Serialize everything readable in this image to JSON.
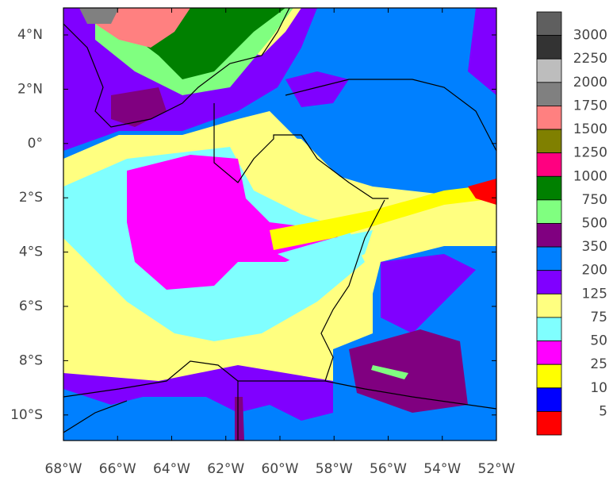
{
  "map": {
    "lon_ticks": [
      "68°W",
      "66°W",
      "64°W",
      "62°W",
      "60°W",
      "58°W",
      "56°W",
      "54°W",
      "52°W"
    ],
    "lat_ticks": [
      "4°N",
      "2°N",
      "0°",
      "2°S",
      "4°S",
      "6°S",
      "8°S",
      "10°S"
    ],
    "colorbar": {
      "colors": [
        "#5f5f5f",
        "#333333",
        "#bdbdbd",
        "#808080",
        "#ff8080",
        "#808000",
        "#ff0080",
        "#008000",
        "#80ff80",
        "#800080",
        "#0080ff",
        "#8000ff",
        "#ffff80",
        "#80ffff",
        "#ff00ff",
        "#ffff00",
        "#0000ff",
        "#ff0000"
      ],
      "levels": [
        3000,
        2250,
        2000,
        1750,
        1500,
        1250,
        1000,
        750,
        500,
        350,
        200,
        125,
        75,
        50,
        25,
        10,
        5
      ]
    }
  }
}
